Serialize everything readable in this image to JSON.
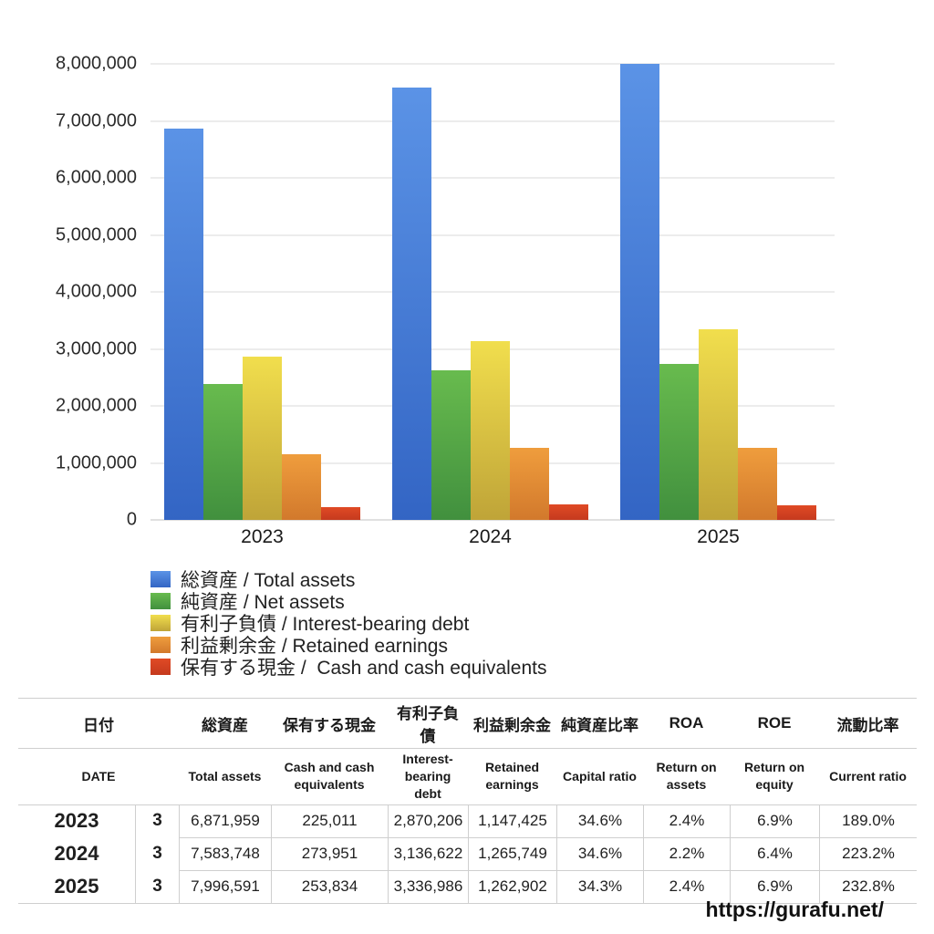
{
  "chart_data": {
    "type": "bar",
    "title": "",
    "categories": [
      "2023",
      "2024",
      "2025"
    ],
    "series": [
      {
        "name": "総資産 / Total assets",
        "values": [
          6871959,
          7583748,
          7996591
        ],
        "color_top": "#5b93e6",
        "color_bottom": "#3365c4"
      },
      {
        "name": "純資産 / Net assets",
        "values": [
          2380000,
          2624000,
          2743000
        ],
        "color_top": "#68bb4e",
        "color_bottom": "#41903e"
      },
      {
        "name": "有利子負債 / Interest-bearing debt",
        "values": [
          2870206,
          3136622,
          3336986
        ],
        "color_top": "#f1de4d",
        "color_bottom": "#bfa438"
      },
      {
        "name": "利益剰余金 / Retained earnings",
        "values": [
          1147425,
          1265749,
          1262902
        ],
        "color_top": "#ef9d3d",
        "color_bottom": "#d2792c"
      },
      {
        "name": "保有する現金 /  Cash and cash equivalents",
        "values": [
          225011,
          273951,
          253834
        ],
        "color_top": "#e04a25",
        "color_bottom": "#c53a1e"
      }
    ],
    "ylim": [
      0,
      8000000
    ],
    "ytick_step": 1000000,
    "ytick_labels": [
      "0",
      "1,000,000",
      "2,000,000",
      "3,000,000",
      "4,000,000",
      "5,000,000",
      "6,000,000",
      "7,000,000",
      "8,000,000"
    ],
    "grid": true,
    "legend_position": "bottom-left"
  },
  "table": {
    "headers_jp": [
      "日付",
      "総資産",
      "保有する現金",
      "有利子負債",
      "利益剰余金",
      "純資産比率",
      "ROA",
      "ROE",
      "流動比率"
    ],
    "headers_en": [
      "DATE",
      "Total assets",
      "Cash and cash equivalents",
      "Interest-bearing debt",
      "Retained earnings",
      "Capital ratio",
      "Return on assets",
      "Return on equity",
      "Current ratio"
    ],
    "rows": [
      {
        "year": "2023",
        "month": "3",
        "values": [
          "6,871,959",
          "225,011",
          "2,870,206",
          "1,147,425",
          "34.6%",
          "2.4%",
          "6.9%",
          "189.0%"
        ]
      },
      {
        "year": "2024",
        "month": "3",
        "values": [
          "7,583,748",
          "273,951",
          "3,136,622",
          "1,265,749",
          "34.6%",
          "2.2%",
          "6.4%",
          "223.2%"
        ]
      },
      {
        "year": "2025",
        "month": "3",
        "values": [
          "7,996,591",
          "253,834",
          "3,336,986",
          "1,262,902",
          "34.3%",
          "2.4%",
          "6.9%",
          "232.8%"
        ]
      }
    ]
  },
  "footer": {
    "url": "https://gurafu.net/"
  }
}
